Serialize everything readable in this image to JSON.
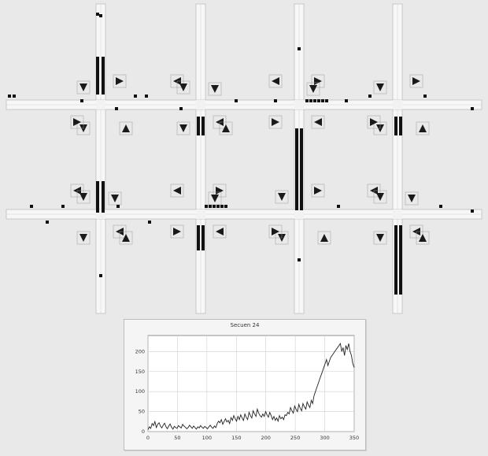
{
  "simulation": {
    "intersections": [
      {
        "row": 0,
        "col": 0
      },
      {
        "row": 0,
        "col": 1
      },
      {
        "row": 0,
        "col": 2
      },
      {
        "row": 0,
        "col": 3
      },
      {
        "row": 1,
        "col": 0
      },
      {
        "row": 1,
        "col": 1
      },
      {
        "row": 1,
        "col": 2
      },
      {
        "row": 1,
        "col": 3
      }
    ]
  },
  "chart_data": {
    "type": "line",
    "title": "Secuen 24",
    "xlabel": "",
    "ylabel": "",
    "xlim": [
      0,
      350
    ],
    "ylim": [
      0,
      240
    ],
    "x_ticks": [
      "0",
      "50",
      "100",
      "150",
      "200",
      "250",
      "300",
      "350"
    ],
    "y_ticks": [
      "0",
      "50",
      "100",
      "150",
      "200"
    ],
    "grid": true,
    "series": [
      {
        "values": [
          5,
          12,
          8,
          20,
          15,
          25,
          10,
          18,
          22,
          14,
          9,
          16,
          21,
          12,
          7,
          14,
          19,
          11,
          6,
          13,
          10,
          8,
          15,
          12,
          9,
          18,
          14,
          11,
          7,
          10,
          16,
          12,
          8,
          14,
          10,
          6,
          12,
          9,
          15,
          11,
          8,
          13,
          10,
          7,
          12,
          16,
          11,
          8,
          14,
          10,
          20,
          26,
          22,
          30,
          18,
          25,
          32,
          24,
          28,
          20,
          35,
          28,
          40,
          32,
          26,
          38,
          30,
          42,
          34,
          28,
          44,
          36,
          30,
          48,
          40,
          34,
          52,
          44,
          38,
          56,
          46,
          40,
          36,
          44,
          38,
          50,
          42,
          36,
          48,
          40,
          30,
          38,
          28,
          34,
          26,
          40,
          32,
          36,
          30,
          42,
          40,
          48,
          44,
          60,
          52,
          46,
          64,
          56,
          50,
          68,
          58,
          52,
          70,
          62,
          56,
          74,
          66,
          60,
          78,
          70,
          90,
          100,
          110,
          120,
          130,
          140,
          150,
          160,
          170,
          180,
          165,
          175,
          185,
          190,
          195,
          200,
          205,
          210,
          215,
          220,
          200,
          210,
          190,
          215,
          205,
          220,
          200,
          190,
          170,
          160
        ]
      }
    ]
  }
}
